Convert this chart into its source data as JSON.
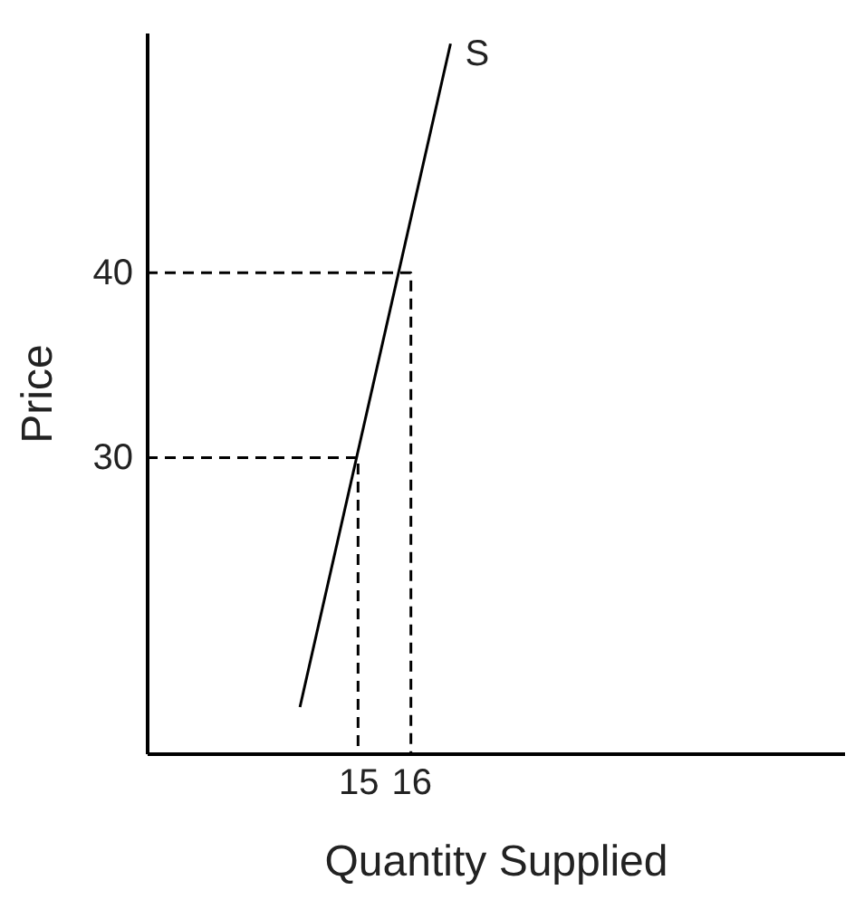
{
  "chart_data": {
    "type": "line",
    "xlabel": "Quantity Supplied",
    "ylabel": "Price",
    "xlim": [
      11,
      24.2
    ],
    "ylim": [
      14,
      53
    ],
    "xticks": [
      15,
      16
    ],
    "yticks": [
      30,
      40
    ],
    "grid": false,
    "series": [
      {
        "name": "S",
        "color": "#000000",
        "x": [
          13.9,
          16.75
        ],
        "values": [
          16.5,
          52.4
        ],
        "line_style": "solid"
      },
      {
        "color": "#000000",
        "x": [
          11,
          15,
          15
        ],
        "values": [
          30,
          30,
          14
        ],
        "line_style": "dashed"
      },
      {
        "color": "#000000",
        "x": [
          11,
          16,
          16
        ],
        "values": [
          40,
          40,
          14
        ],
        "line_style": "dashed"
      }
    ]
  }
}
